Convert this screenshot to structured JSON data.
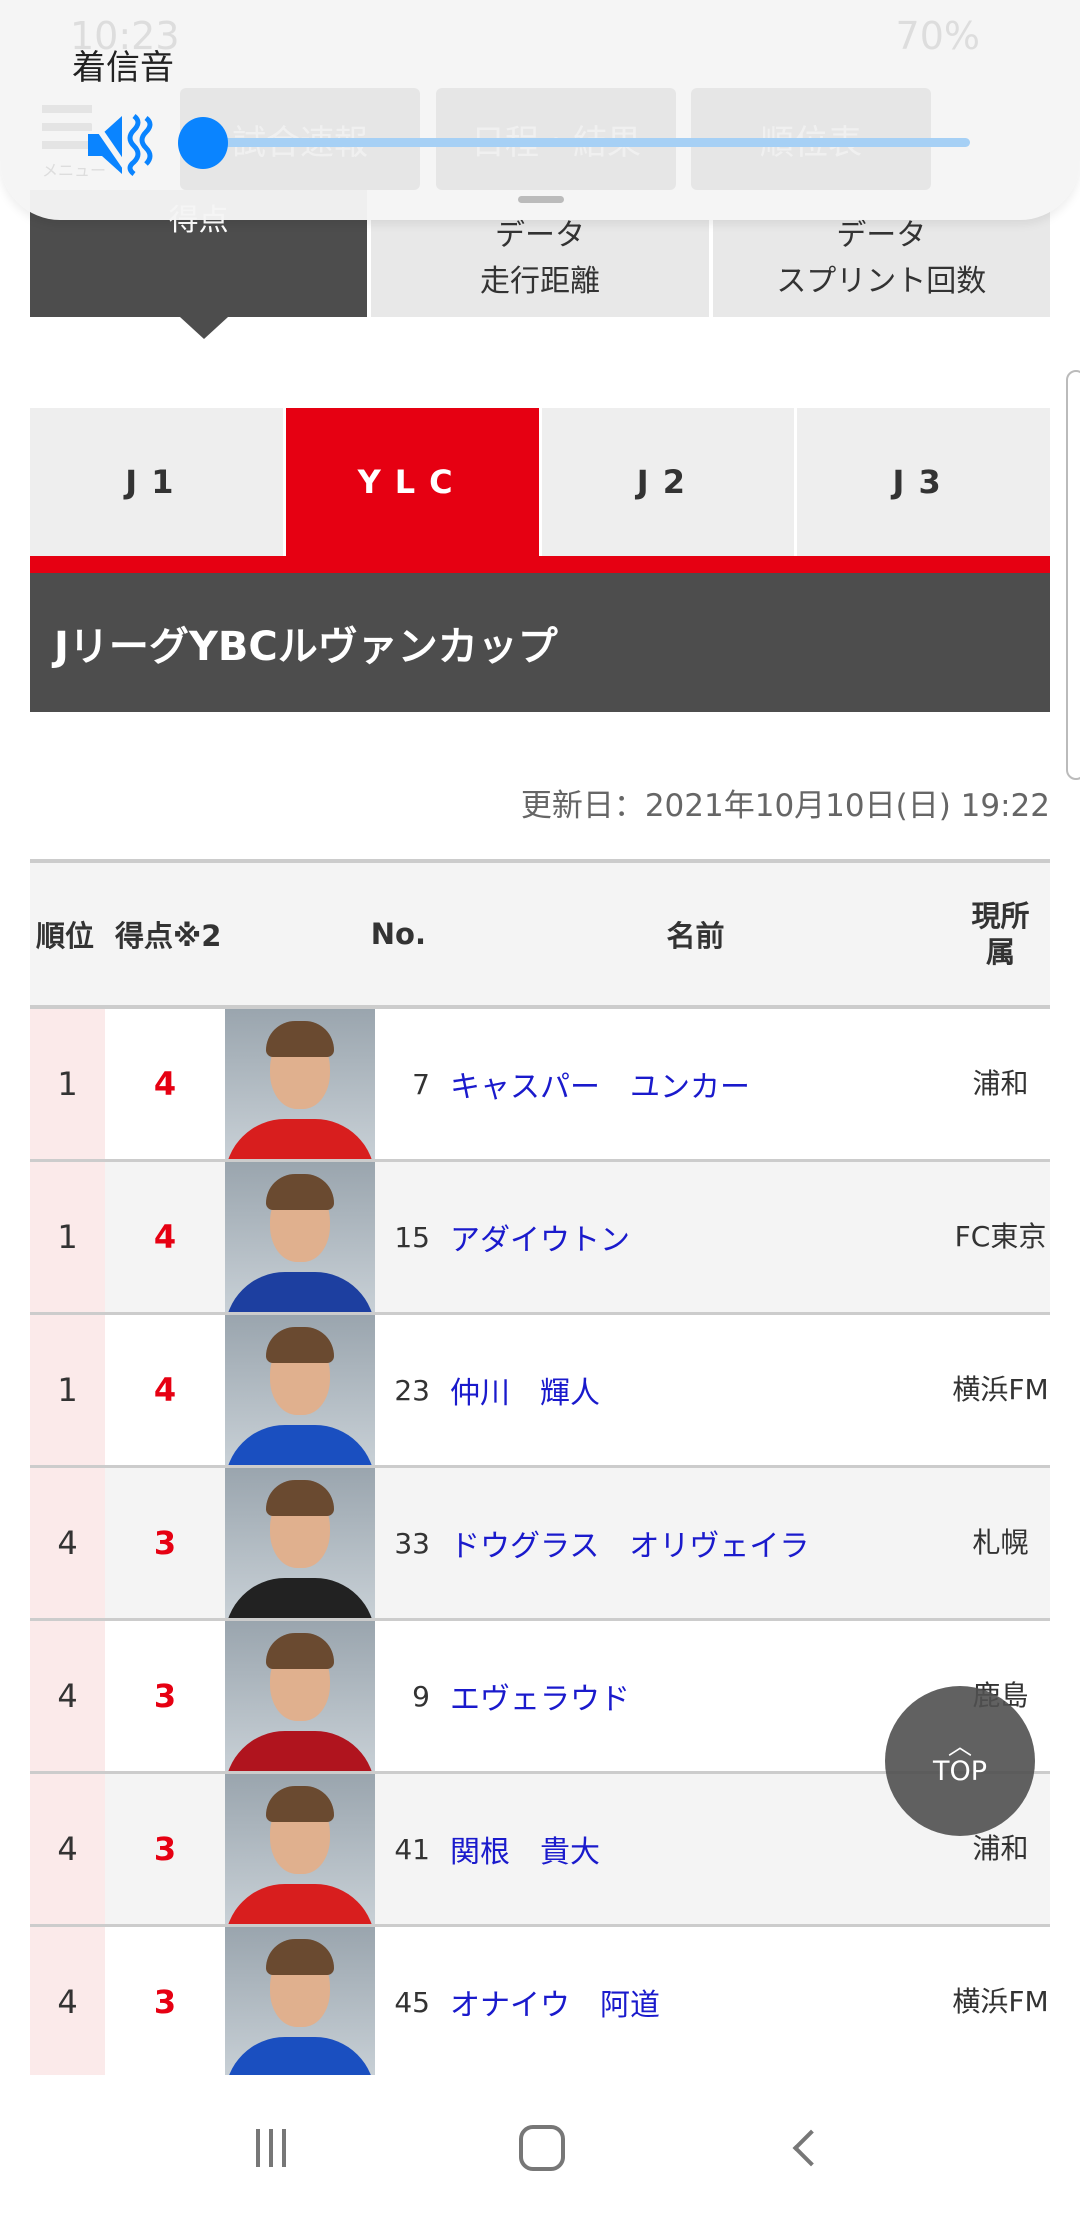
{
  "status_bar": {
    "time": "10:23",
    "battery": "70%"
  },
  "volume_panel": {
    "title": "着信音",
    "level": 0,
    "muted": true,
    "icon": "mute-vibrate-icon",
    "accent": "#0a84ff"
  },
  "site_nav": {
    "menu_label": "メニュー",
    "items": [
      "試合速報",
      "日程・結果",
      "順位表"
    ]
  },
  "sub_tabs": [
    {
      "label": "得点",
      "active": true
    },
    {
      "label": "データ\n走行距離"
    },
    {
      "label": "データ\nスプリント回数"
    }
  ],
  "leagues": [
    {
      "label": "J1"
    },
    {
      "label": "YLC",
      "active": true
    },
    {
      "label": "J2"
    },
    {
      "label": "J3"
    }
  ],
  "competition_title": "JリーグYBCルヴァンカップ",
  "updated": "更新日：2021年10月10日(日) 19:22",
  "table": {
    "headers": {
      "rank": "順位",
      "score": "得点※2",
      "no": "No.",
      "name": "名前",
      "team": "現所属"
    },
    "rows": [
      {
        "rank": "1",
        "score": "4",
        "no": "7",
        "name": "キャスパー　ユンカー",
        "team": "浦和",
        "jersey": "#d81e1e"
      },
      {
        "rank": "1",
        "score": "4",
        "no": "15",
        "name": "アダイウトン",
        "team": "FC東京",
        "jersey": "#1d3fa0"
      },
      {
        "rank": "1",
        "score": "4",
        "no": "23",
        "name": "仲川　輝人",
        "team": "横浜FM",
        "jersey": "#1a4fc0"
      },
      {
        "rank": "4",
        "score": "3",
        "no": "33",
        "name": "ドウグラス　オリヴェイラ",
        "team": "札幌",
        "jersey": "#222"
      },
      {
        "rank": "4",
        "score": "3",
        "no": "9",
        "name": "エヴェラウド",
        "team": "鹿島",
        "jersey": "#b0141e"
      },
      {
        "rank": "4",
        "score": "3",
        "no": "41",
        "name": "関根　貴大",
        "team": "浦和",
        "jersey": "#d81e1e"
      },
      {
        "rank": "4",
        "score": "3",
        "no": "45",
        "name": "オナイウ　阿道",
        "team": "横浜FM",
        "jersey": "#1a4fc0"
      }
    ]
  },
  "top_button": "TOP",
  "colors": {
    "brand_red": "#e60012",
    "dark": "#4d4d4d",
    "link": "#1a1acc"
  }
}
